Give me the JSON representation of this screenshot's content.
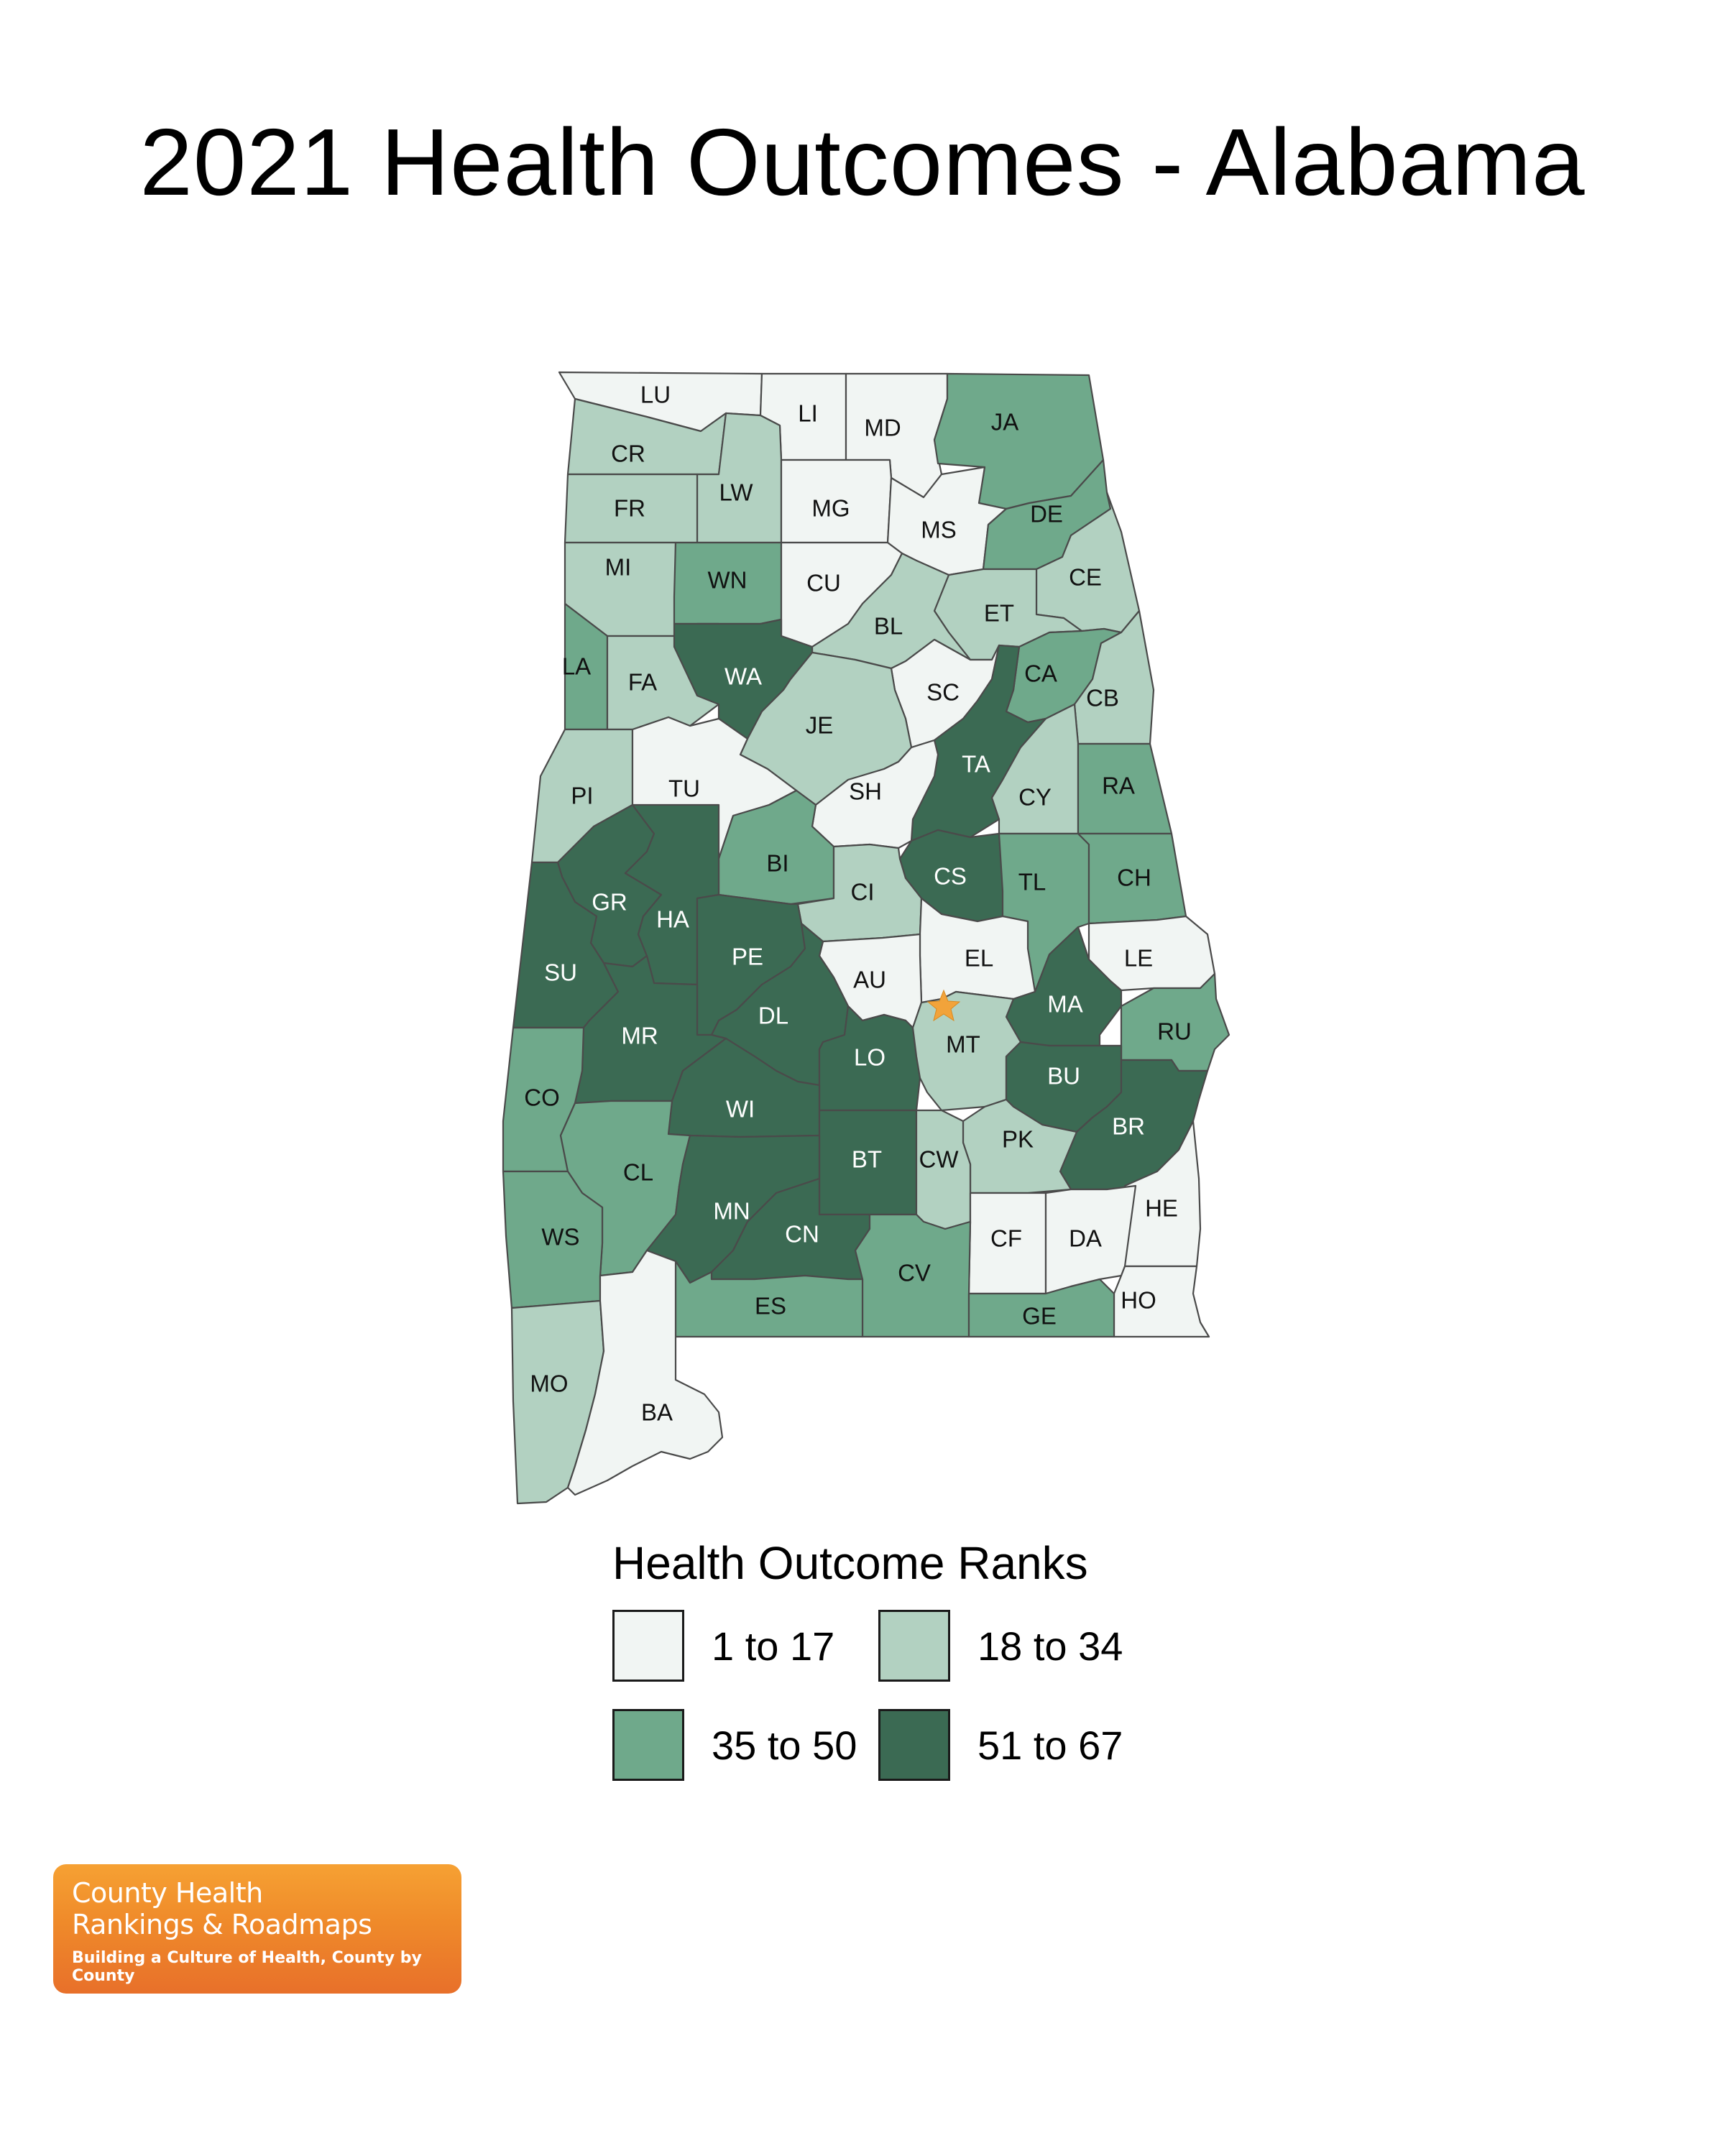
{
  "title": "2021 Health Outcomes - Alabama",
  "legend": {
    "title": "Health Outcome Ranks",
    "items": [
      {
        "label": "1 to 17",
        "color": "#f1f5f3"
      },
      {
        "label": "18 to 34",
        "color": "#b2d1c1"
      },
      {
        "label": "35 to 50",
        "color": "#6fa98b"
      },
      {
        "label": "51 to 67",
        "color": "#3b6a53"
      }
    ]
  },
  "counties": [
    {
      "abbr": "LU",
      "bin": 0
    },
    {
      "abbr": "LI",
      "bin": 0
    },
    {
      "abbr": "MD",
      "bin": 0
    },
    {
      "abbr": "JA",
      "bin": 2
    },
    {
      "abbr": "CR",
      "bin": 1
    },
    {
      "abbr": "LW",
      "bin": 1
    },
    {
      "abbr": "FR",
      "bin": 1
    },
    {
      "abbr": "MG",
      "bin": 0
    },
    {
      "abbr": "MS",
      "bin": 0
    },
    {
      "abbr": "DE",
      "bin": 2
    },
    {
      "abbr": "MI",
      "bin": 1
    },
    {
      "abbr": "WN",
      "bin": 2
    },
    {
      "abbr": "CU",
      "bin": 0
    },
    {
      "abbr": "CE",
      "bin": 1
    },
    {
      "abbr": "ET",
      "bin": 1
    },
    {
      "abbr": "BL",
      "bin": 1
    },
    {
      "abbr": "LA",
      "bin": 2
    },
    {
      "abbr": "FA",
      "bin": 1
    },
    {
      "abbr": "WA",
      "bin": 3
    },
    {
      "abbr": "CA",
      "bin": 2
    },
    {
      "abbr": "SC",
      "bin": 0
    },
    {
      "abbr": "CB",
      "bin": 1
    },
    {
      "abbr": "JE",
      "bin": 1
    },
    {
      "abbr": "TA",
      "bin": 3
    },
    {
      "abbr": "PI",
      "bin": 1
    },
    {
      "abbr": "TU",
      "bin": 0
    },
    {
      "abbr": "SH",
      "bin": 0
    },
    {
      "abbr": "CY",
      "bin": 1
    },
    {
      "abbr": "RA",
      "bin": 2
    },
    {
      "abbr": "BI",
      "bin": 2
    },
    {
      "abbr": "CS",
      "bin": 3
    },
    {
      "abbr": "TL",
      "bin": 2
    },
    {
      "abbr": "CH",
      "bin": 2
    },
    {
      "abbr": "GR",
      "bin": 3
    },
    {
      "abbr": "CI",
      "bin": 1
    },
    {
      "abbr": "HA",
      "bin": 3
    },
    {
      "abbr": "PE",
      "bin": 3
    },
    {
      "abbr": "EL",
      "bin": 0
    },
    {
      "abbr": "LE",
      "bin": 0
    },
    {
      "abbr": "SU",
      "bin": 3
    },
    {
      "abbr": "AU",
      "bin": 0
    },
    {
      "abbr": "MA",
      "bin": 3
    },
    {
      "abbr": "DL",
      "bin": 3
    },
    {
      "abbr": "MR",
      "bin": 3
    },
    {
      "abbr": "RU",
      "bin": 2
    },
    {
      "abbr": "LO",
      "bin": 3
    },
    {
      "abbr": "MT",
      "bin": 1
    },
    {
      "abbr": "BU",
      "bin": 3
    },
    {
      "abbr": "CO",
      "bin": 2
    },
    {
      "abbr": "WI",
      "bin": 3
    },
    {
      "abbr": "BR",
      "bin": 3
    },
    {
      "abbr": "PK",
      "bin": 1
    },
    {
      "abbr": "CL",
      "bin": 2
    },
    {
      "abbr": "BT",
      "bin": 3
    },
    {
      "abbr": "CW",
      "bin": 1
    },
    {
      "abbr": "HE",
      "bin": 0
    },
    {
      "abbr": "MN",
      "bin": 3
    },
    {
      "abbr": "WS",
      "bin": 2
    },
    {
      "abbr": "CF",
      "bin": 0
    },
    {
      "abbr": "DA",
      "bin": 0
    },
    {
      "abbr": "CN",
      "bin": 3
    },
    {
      "abbr": "CV",
      "bin": 2
    },
    {
      "abbr": "HO",
      "bin": 0
    },
    {
      "abbr": "ES",
      "bin": 2
    },
    {
      "abbr": "GE",
      "bin": 2
    },
    {
      "abbr": "MO",
      "bin": 1
    },
    {
      "abbr": "BA",
      "bin": 0
    }
  ],
  "capital_marker": {
    "icon": "star-icon",
    "color": "#f2a33a"
  },
  "logo": {
    "line1": "County Health",
    "line2": "Rankings & Roadmaps",
    "tagline": "Building a Culture of Health, County by County"
  }
}
